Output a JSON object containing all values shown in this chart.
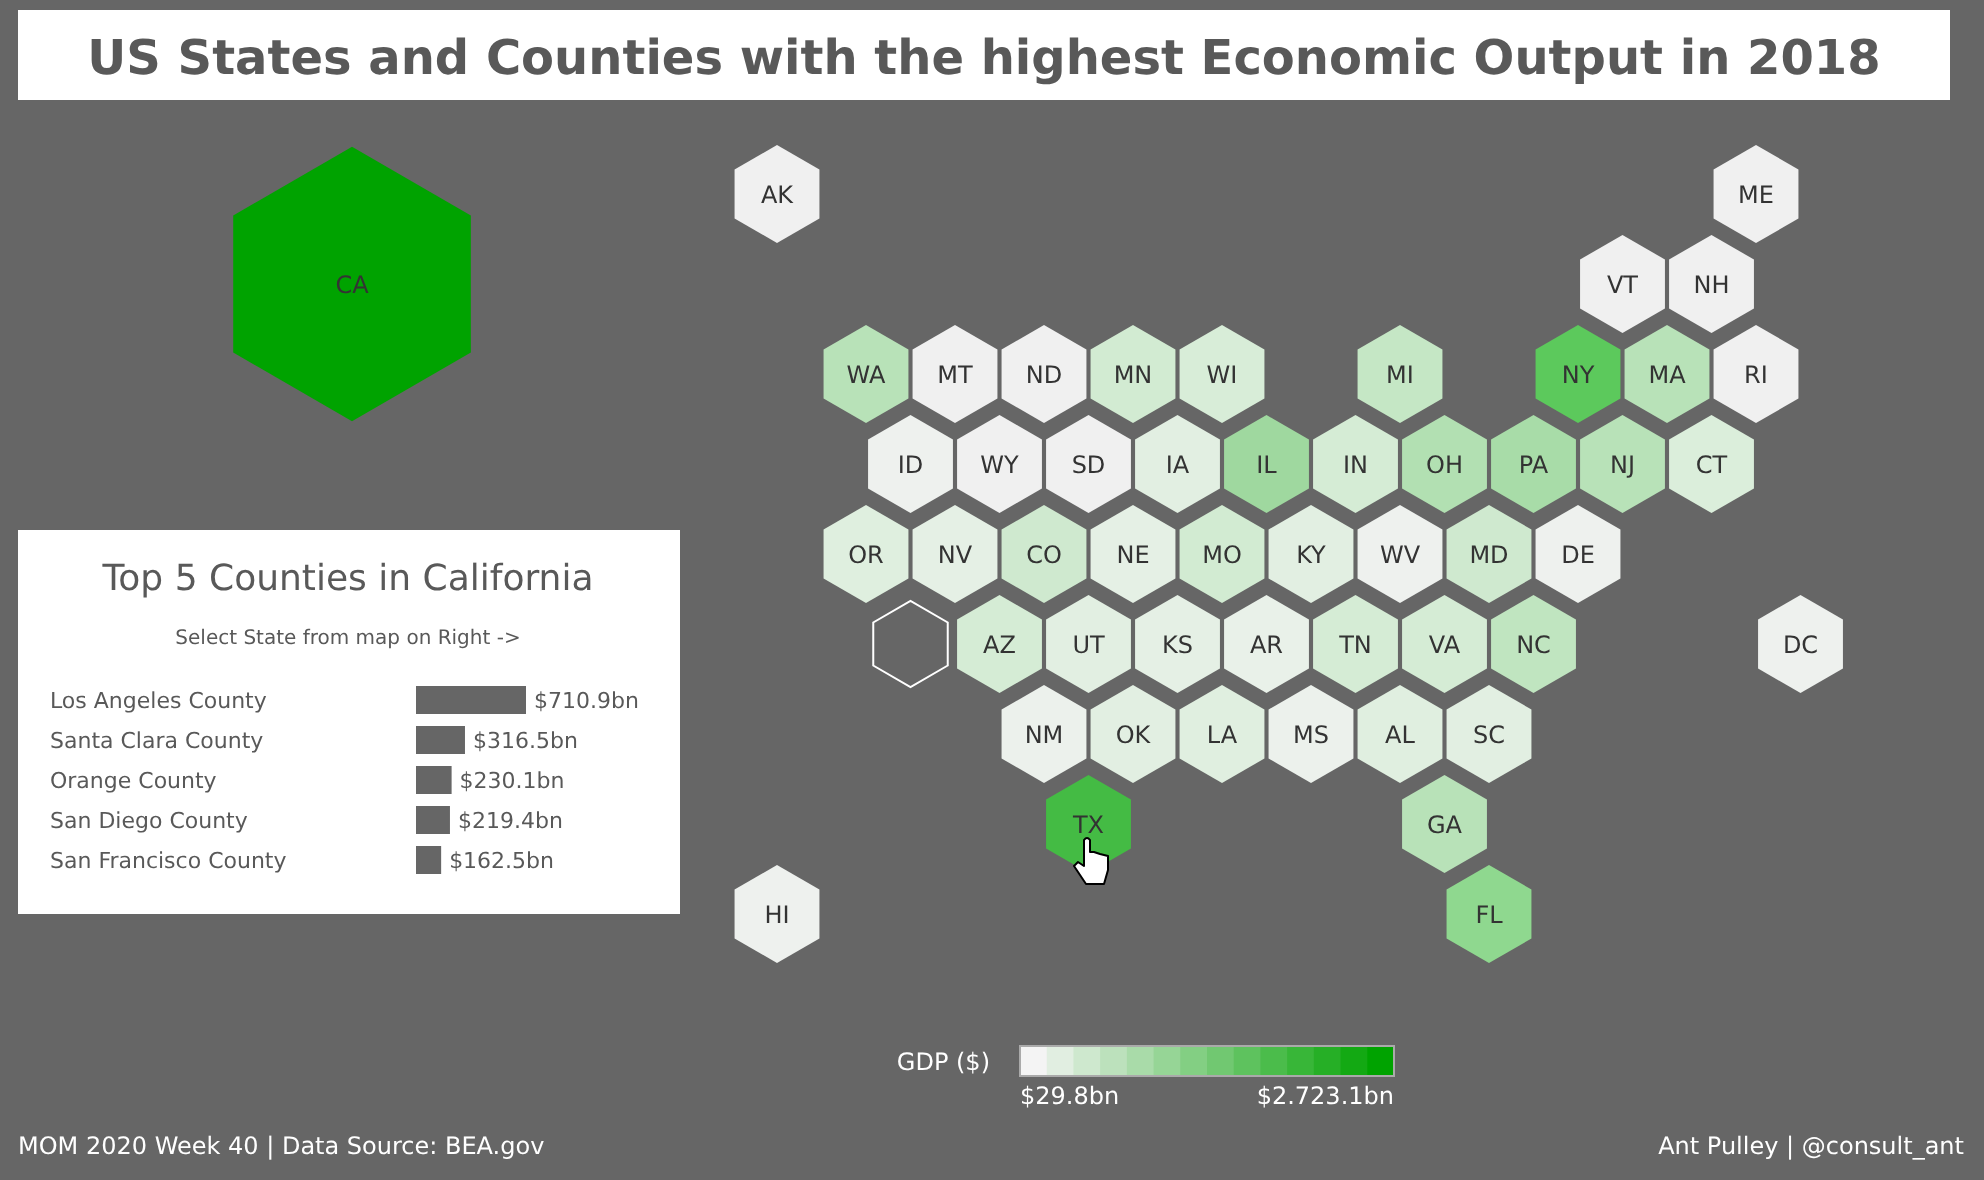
{
  "chart_data": [
    {
      "type": "other",
      "title": "US States and Counties with the highest Economic Output in 2018",
      "categories": [
        "CA",
        "AK",
        "ME",
        "VT",
        "NH",
        "WA",
        "MT",
        "ND",
        "MN",
        "WI",
        "MI",
        "NY",
        "MA",
        "RI",
        "ID",
        "WY",
        "SD",
        "IA",
        "IL",
        "IN",
        "OH",
        "PA",
        "NJ",
        "CT",
        "OR",
        "NV",
        "CO",
        "NE",
        "MO",
        "KY",
        "WV",
        "MD",
        "DE",
        "AZ",
        "UT",
        "KS",
        "AR",
        "TN",
        "VA",
        "NC",
        "DC",
        "NM",
        "OK",
        "LA",
        "MS",
        "AL",
        "SC",
        "TX",
        "GA",
        "HI",
        "FL"
      ],
      "colors": [
        "#00a300",
        "#f0f0f0",
        "#f0f0f0",
        "#f0f0f0",
        "#f0f0f0",
        "#b8e2b8",
        "#f0f0f0",
        "#f0f0f0",
        "#d2ebd2",
        "#d8edd8",
        "#c5e7c5",
        "#5cc95c",
        "#b8e2b8",
        "#f0f0f0",
        "#eef1ee",
        "#f0f0f0",
        "#f0f0f0",
        "#e2efe2",
        "#9fd89f",
        "#d5ecd5",
        "#b2e0b2",
        "#a8dca8",
        "#b8e2b8",
        "#dbeedb",
        "#dfefdf",
        "#e5f0e5",
        "#cfe9cf",
        "#e5f0e5",
        "#d2ebd2",
        "#e2efe2",
        "#eef1ee",
        "#cfe9cf",
        "#eef1ee",
        "#d5ecd5",
        "#e2efe2",
        "#e5f0e5",
        "#e9f1e9",
        "#d5ecd5",
        "#d5ecd5",
        "#c0e5c0",
        "#eef1ee",
        "#ecf1ec",
        "#e2efe2",
        "#e0efe0",
        "#ecf1ec",
        "#e0efe0",
        "#e2efe2",
        "#44bb44",
        "#b8e2b8",
        "#eef1ee",
        "#8fd88f"
      ],
      "clabel": "GDP ($)",
      "annotations": [
        "$29.8bn",
        "$2.723.1bn",
        "MOM 2020 Week 40 | Data Source: BEA.gov",
        "Ant Pulley | @consult_ant"
      ]
    },
    {
      "type": "bar",
      "orientation": "horizontal",
      "title": "Top 5 Counties in California",
      "subtitle": "Select State from map on Right ->",
      "categories": [
        "Los Angeles County",
        "Santa Clara County",
        "Orange County",
        "San Diego County",
        "San Francisco County"
      ],
      "values": [
        710.9,
        316.5,
        230.1,
        219.4,
        162.5
      ],
      "color": "#666666",
      "value_labels": [
        "$710.9bn",
        "$316.5bn",
        "$230.1bn",
        "$219.4bn",
        "$162.5bn"
      ]
    }
  ]
}
